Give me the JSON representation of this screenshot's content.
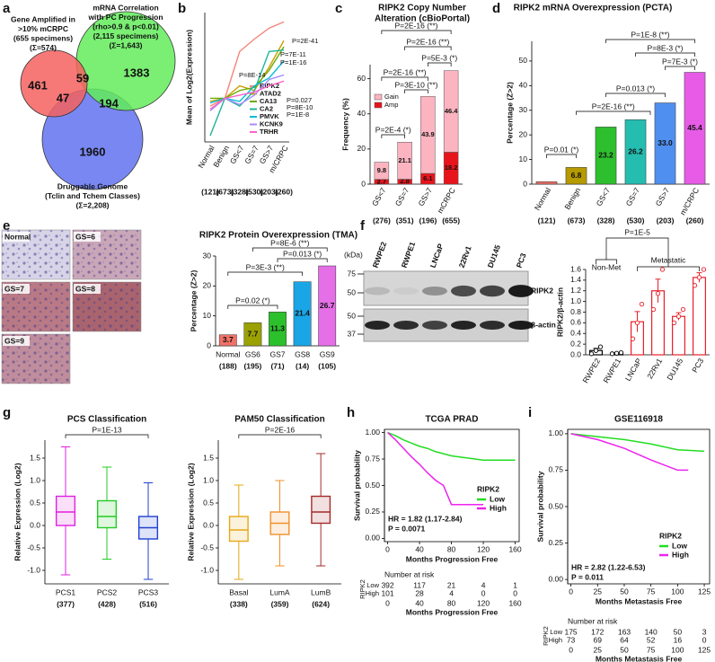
{
  "chart_data": [
    {
      "type": "venn",
      "panel": "a",
      "sets": [
        {
          "name": [
            "Gene Amplified in",
            ">10% mCRPC",
            "(655 specimens)",
            "(Σ=574)"
          ],
          "color": "#f4625f"
        },
        {
          "name": [
            "mRNA Correlation",
            "with PC Progression",
            "(rho>0.9 & p<0.01)",
            "(2,115 specimens)",
            "(Σ=1,643)"
          ],
          "color": "#63ec5b"
        },
        {
          "name": [
            "Druggable Genome",
            "(Tclin and Tchem Classes)",
            "(Σ=2,208)"
          ],
          "color": "#6272f0"
        }
      ],
      "regions": [
        461,
        59,
        1383,
        47,
        194,
        1960
      ]
    },
    {
      "type": "line",
      "panel": "b",
      "ylabel": "Mean of Log2(Expression)",
      "categories": [
        "Normal",
        "Benign",
        "GS<7",
        "GS=7",
        "GS>7",
        "m/CRPC"
      ],
      "counts": [
        "(121)",
        "(673)",
        "(328)",
        "(530)",
        "(203)",
        "(260)"
      ],
      "ylim": [
        -0.28,
        0.55
      ],
      "series": [
        {
          "name": "RIPK2",
          "color": "#f4857a",
          "values": [
            -0.05,
            0,
            0.3,
            0.38,
            0.45,
            0.49
          ]
        },
        {
          "name": "ATAD2",
          "color": "#c9a000",
          "values": [
            -0.02,
            0,
            0.08,
            0.05,
            0.2,
            0.37
          ]
        },
        {
          "name": "CA13",
          "color": "#6aaa00",
          "values": [
            0,
            0,
            0.05,
            0.07,
            0.18,
            0.33
          ]
        },
        {
          "name": "CA2",
          "color": "#1fb59a",
          "values": [
            -0.24,
            0,
            -0.05,
            0.05,
            0.3,
            0.31
          ]
        },
        {
          "name": "PMVK",
          "color": "#00bcd8",
          "values": [
            -0.03,
            0,
            -0.02,
            0.08,
            0.13,
            0.24
          ]
        },
        {
          "name": "KCNK9",
          "color": "#a98bff",
          "values": [
            -0.08,
            0,
            -0.04,
            0.02,
            0.12,
            0.15
          ]
        },
        {
          "name": "TRHR",
          "color": "#ff62c8",
          "values": [
            -0.07,
            0,
            0.02,
            0.04,
            0.08,
            0.11
          ]
        }
      ],
      "annotations": [
        "P=2E-41",
        "P=7E-11",
        "P=1E-16",
        "P=8E-14",
        "P=0.027",
        "P=8E-10",
        "P=1E-8"
      ]
    },
    {
      "type": "stacked_bar",
      "panel": "c",
      "title": [
        "RIPK2 Copy Number",
        "Alteration (cBioPortal)"
      ],
      "ylabel": "Frequency (%)",
      "categories": [
        "GS<7",
        "GS=7",
        "GS>7",
        "mCRPC"
      ],
      "counts": [
        "(276)",
        "(351)",
        "(196)",
        "(655)"
      ],
      "ylim": [
        0,
        68
      ],
      "yticks": [
        0,
        20,
        40,
        60
      ],
      "series": [
        {
          "name": "Amp",
          "color": "#e8141b",
          "values": [
            2.7,
            2.8,
            6.1,
            18.2
          ]
        },
        {
          "name": "Gain",
          "color": "#fbb4c0",
          "values": [
            9.8,
            21.1,
            43.9,
            46.4
          ]
        }
      ],
      "annotations": [
        "P=2E-4 (*)",
        "P=3E-10 (**)",
        "P=2E-16 (**)",
        "P=5E-3 (*)",
        "P=2E-16 (**)",
        "P=2E-16 (**)"
      ]
    },
    {
      "type": "bar",
      "panel": "d",
      "title": "RIPK2 mRNA Overexpression (PCTA)",
      "ylabel": "Percentage (Z>2)",
      "categories": [
        "Normal",
        "Benign",
        "GS<7",
        "GS=7",
        "GS>7",
        "m/CRPC"
      ],
      "counts": [
        "(121)",
        "(673)",
        "(328)",
        "(530)",
        "(203)",
        "(260)"
      ],
      "values": [
        1,
        6.8,
        23.2,
        26.2,
        33.0,
        45.4
      ],
      "value_labels": [
        null,
        "6.8",
        "23.2",
        "26.2",
        "33.0",
        "45.4"
      ],
      "colors": [
        "#f07167",
        "#b59a00",
        "#2ebf2e",
        "#24bdb0",
        "#4f8ff0",
        "#e65ce6"
      ],
      "ylim": [
        0,
        58
      ],
      "yticks": [
        0,
        10,
        20,
        30,
        40,
        50
      ],
      "annotations": [
        "P=0.01 (*)",
        "P=2E-16 (**)",
        "P=0.013 (*)",
        "P=8E-3 (*)",
        "P=7E-3 (*)",
        "P=1E-8 (**)"
      ]
    },
    {
      "type": "bar",
      "panel": "e",
      "images": [
        "Normal",
        "GS=6",
        "GS=7",
        "GS=8",
        "GS=9"
      ],
      "title": "RIPK2 Protein Overexpression (TMA)",
      "ylabel": "Percentage (Z>2)",
      "categories": [
        "Normal",
        "GS6",
        "GS7",
        "GS8",
        "GS9"
      ],
      "counts": [
        "(188)",
        "(195)",
        "(71)",
        "(14)",
        "(105)"
      ],
      "values": [
        3.7,
        7.7,
        11.3,
        21.4,
        26.7
      ],
      "colors": [
        "#f07167",
        "#9aa100",
        "#2cc02c",
        "#19a5e6",
        "#e56fe6"
      ],
      "ylim": [
        0,
        30
      ],
      "yticks": [
        0,
        10,
        20,
        30
      ],
      "annotations": [
        "P=0.02 (*)",
        "P=3E-3 (**)",
        "P=0.013 (*)",
        "P=8E-6 (**)"
      ]
    },
    {
      "type": "bar_error",
      "panel": "f",
      "blot": {
        "unit": "(kDa)",
        "markers": [
          "75",
          "50",
          "50",
          "37"
        ],
        "lanes": [
          "RWPE2",
          "RWPE1",
          "LNCaP",
          "22Rv1",
          "DU145",
          "PC3"
        ],
        "bands": [
          "RIPK2",
          "β-actin"
        ]
      },
      "ylabel": "RIPK2/β-actin",
      "categories": [
        "RWPE2",
        "RWPE1",
        "LNCaP",
        "22Rv1",
        "DU145",
        "PC3"
      ],
      "values": [
        0.08,
        0.03,
        0.62,
        1.2,
        0.72,
        1.45
      ],
      "errors": [
        0.04,
        0.01,
        0.19,
        0.22,
        0.07,
        0.09
      ],
      "points": [
        [
          0.02,
          0.08,
          0.15
        ],
        [
          0.02,
          0.03,
          0.04
        ],
        [
          0.3,
          0.6,
          0.95
        ],
        [
          0.85,
          1.15,
          1.6
        ],
        [
          0.6,
          0.72,
          0.85
        ],
        [
          1.3,
          1.45,
          1.6
        ]
      ],
      "colors": [
        "#000000",
        "#000000",
        "#e8202a",
        "#e8202a",
        "#e8202a",
        "#e8202a"
      ],
      "ylim": [
        0,
        1.6
      ],
      "yticks": [
        {
          "value": 0,
          "label": "0.0"
        },
        0.2,
        0.4,
        0.6,
        0.8,
        {
          "value": 1,
          "label": "1.0"
        },
        1.2,
        1.4,
        1.6
      ],
      "annotations": [
        "P=1E-5",
        "Non-Met",
        "Metastatic"
      ]
    },
    {
      "type": "box",
      "panel": "g",
      "title": "PCS Classification",
      "ylabel": "Relative Expression (Log2)",
      "categories": [
        "PCS1",
        "PCS2",
        "PCS3"
      ],
      "counts": [
        "(377)",
        "(428)",
        "(516)"
      ],
      "colors": [
        "#e020e0",
        "#22cc22",
        "#2040d0"
      ],
      "boxes": [
        {
          "min": -1.1,
          "q1": 0.0,
          "median": 0.3,
          "q3": 0.65,
          "max": 1.75
        },
        {
          "min": -0.75,
          "q1": -0.05,
          "median": 0.2,
          "q3": 0.55,
          "max": 1.3
        },
        {
          "min": -1.2,
          "q1": -0.3,
          "median": -0.05,
          "q3": 0.2,
          "max": 0.95
        }
      ],
      "ylim": [
        -1.3,
        1.9
      ],
      "yticks": [
        {
          "value": -1,
          "label": "-1.0"
        },
        -0.5,
        {
          "value": 0,
          "label": "0.0"
        },
        0.5,
        {
          "value": 1,
          "label": "1.0"
        },
        1.5
      ],
      "annotations": [
        "P=1E-13"
      ]
    },
    {
      "type": "box",
      "title": "PAM50 Classification",
      "ylabel": "Relative Expression (Log2)",
      "categories": [
        "Basal",
        "LumA",
        "LumB"
      ],
      "counts": [
        "(338)",
        "(359)",
        "(624)"
      ],
      "colors": [
        "#e6a817",
        "#f0902a",
        "#a52a2a"
      ],
      "boxes": [
        {
          "min": -1.2,
          "q1": -0.35,
          "median": -0.1,
          "q3": 0.2,
          "max": 0.9
        },
        {
          "min": -0.9,
          "q1": -0.2,
          "median": 0.05,
          "q3": 0.3,
          "max": 1.0
        },
        {
          "min": -0.9,
          "q1": 0.05,
          "median": 0.3,
          "q3": 0.65,
          "max": 1.6
        }
      ],
      "ylim": [
        -1.3,
        1.9
      ],
      "yticks": [
        {
          "value": -1,
          "label": "-1.0"
        },
        -0.5,
        {
          "value": 0,
          "label": "0.0"
        },
        0.5,
        {
          "value": 1,
          "label": "1.0"
        },
        1.5
      ],
      "annotations": [
        "P=2E-16"
      ]
    },
    {
      "type": "km",
      "panel": "h",
      "title": "TCGA PRAD",
      "xlabel": "Months Progression Free",
      "ylabel": "Survival probability",
      "xlim": [
        -4,
        165
      ],
      "xticks": [
        0,
        40,
        80,
        120,
        160
      ],
      "ylim": [
        -0.03,
        1.03
      ],
      "yticks": [
        {
          "value": 0,
          "label": "0.00"
        },
        0.25,
        {
          "value": 0.5,
          "label": "0.50"
        },
        0.75,
        {
          "value": 1,
          "label": "1.00"
        }
      ],
      "legend_title": "RIPK2",
      "series": [
        {
          "name": "Low",
          "color": "#22dd22",
          "x": [
            0,
            10,
            20,
            30,
            40,
            50,
            60,
            80,
            100,
            120,
            140,
            160
          ],
          "y": [
            1,
            0.97,
            0.93,
            0.9,
            0.87,
            0.85,
            0.82,
            0.78,
            0.76,
            0.74,
            0.74,
            0.74
          ]
        },
        {
          "name": "High",
          "color": "#ee22ee",
          "x": [
            0,
            10,
            20,
            30,
            40,
            50,
            60,
            70,
            80,
            90,
            120
          ],
          "y": [
            1,
            0.93,
            0.85,
            0.77,
            0.7,
            0.62,
            0.55,
            0.5,
            0.32,
            0.32,
            0.32
          ]
        }
      ],
      "annotations": [
        "HR = 1.82 (1.17-2.84)",
        "P = 0.0071"
      ],
      "risk": {
        "title": "Number at risk",
        "ylabel": "RIPK2",
        "rows": [
          [
            392,
            117,
            21,
            4,
            1
          ],
          [
            101,
            28,
            4,
            0,
            0
          ]
        ],
        "xlabel": "Months Progression Free"
      }
    },
    {
      "type": "km",
      "panel": "i",
      "title": "GSE116918",
      "xlabel": "Months Metastasis Free",
      "ylabel": "Survival probability",
      "xlim": [
        -3,
        130
      ],
      "xticks": [
        0,
        25,
        50,
        75,
        100,
        125
      ],
      "ylim": [
        -0.03,
        1.03
      ],
      "yticks": [
        {
          "value": 0,
          "label": "0.00"
        },
        0.25,
        {
          "value": 0.5,
          "label": "0.50"
        },
        0.75,
        {
          "value": 1,
          "label": "1.00"
        }
      ],
      "legend_title": "RIPK2",
      "series": [
        {
          "name": "Low",
          "color": "#22dd22",
          "x": [
            0,
            25,
            50,
            75,
            100,
            125
          ],
          "y": [
            1,
            0.98,
            0.96,
            0.93,
            0.89,
            0.88
          ]
        },
        {
          "name": "High",
          "color": "#ee22ee",
          "x": [
            0,
            25,
            50,
            75,
            100,
            110
          ],
          "y": [
            1,
            0.96,
            0.9,
            0.82,
            0.75,
            0.75
          ]
        }
      ],
      "annotations": [
        "HR = 2.82 (1.22-6.53)",
        "P = 0.011"
      ],
      "risk": {
        "title": "Number at risk",
        "ylabel": "RIPK2",
        "rows": [
          [
            175,
            172,
            163,
            140,
            50,
            3
          ],
          [
            73,
            69,
            64,
            52,
            16,
            0
          ]
        ],
        "xlabel": "Months Metastasis Free"
      }
    }
  ]
}
